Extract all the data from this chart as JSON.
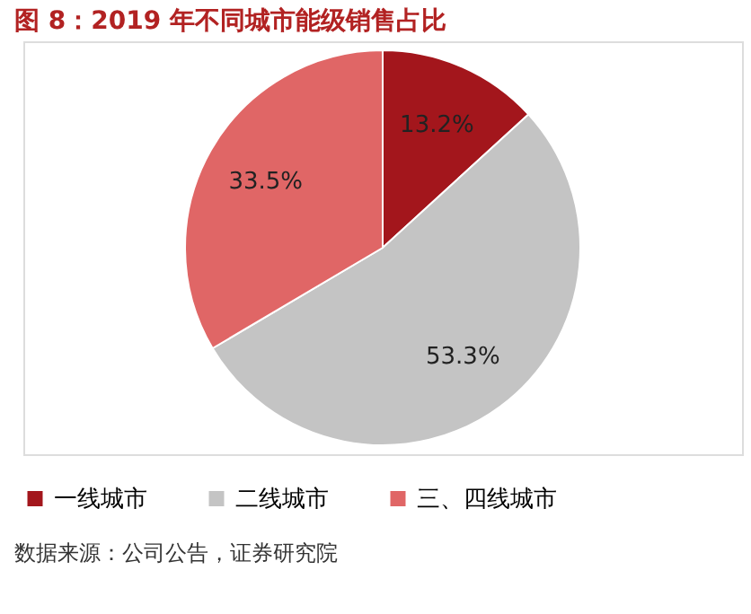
{
  "chart_data": {
    "type": "pie",
    "title": "图 8：2019 年不同城市能级销售占比",
    "categories": [
      "一线城市",
      "二线城市",
      "三、四线城市"
    ],
    "values": [
      13.2,
      53.3,
      33.5
    ],
    "colors": [
      "#a3161c",
      "#c4c4c4",
      "#e06666"
    ],
    "value_labels": [
      "13.2%",
      "53.3%",
      "33.5%"
    ],
    "legend": "bottom",
    "annotations": [
      "数据来源：公司公告，证券研究院"
    ]
  }
}
